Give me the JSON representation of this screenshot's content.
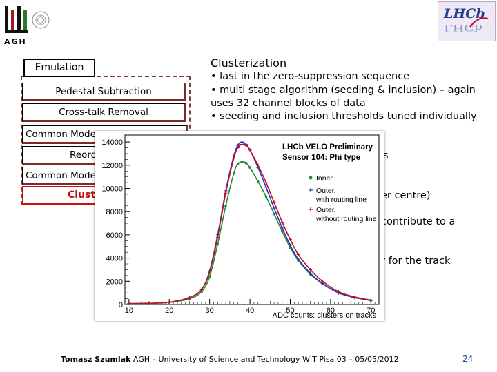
{
  "logos": {
    "agh_text": "AGH",
    "lhcb_text": "LHCb",
    "seal_icon": "university-seal-icon"
  },
  "diagram": {
    "emulation": "Emulation",
    "pedestal": "Pedestal Subtraction",
    "crosstalk": "Cross-talk Removal",
    "common_mode_1": "Common Mode",
    "reorder": "Reord",
    "common_mode_2": "Common Mode",
    "cluster": "Cluste"
  },
  "text": {
    "title": "Clusterization",
    "bullet1": "• last in the zero-suppression sequence",
    "bullet2": "• multi stage algorithm (seeding & inclusion) – again uses 32 channel blocks of data",
    "bullet3": "• seeding and inclusion thresholds tuned individually",
    "frag1": "s",
    "frag2": "er centre)",
    "frag3": "contribute to a",
    "frag4": "r for the track"
  },
  "footer": {
    "author": "Tomasz Szumlak",
    "affiliation": "AGH – University of Science and Technology WIT Pisa 03 – 05/05/2012",
    "page": "24"
  },
  "colors": {
    "inner": "#1e8a2e",
    "outer_routing": "#2233cc",
    "outer_no_routing": "#c01020",
    "cluster_box": "#d01010"
  },
  "chart_data": {
    "type": "line",
    "title": "LHCb VELO Preliminary",
    "subtitle": "Sensor 104: Phi type",
    "xlabel": "ADC counts: clusters on tracks",
    "ylabel": "",
    "xlim": [
      9,
      72
    ],
    "ylim": [
      0,
      14600
    ],
    "xticks": [
      10,
      20,
      30,
      40,
      50,
      60,
      70
    ],
    "yticks": [
      0,
      2000,
      4000,
      6000,
      8000,
      10000,
      12000,
      14000
    ],
    "legend_position": "right",
    "series": [
      {
        "name": "Inner",
        "color_key": "inner",
        "x": [
          10,
          15,
          20,
          25,
          28,
          30,
          32,
          34,
          36,
          37,
          38,
          39,
          40,
          42,
          44,
          46,
          48,
          50,
          52,
          55,
          58,
          62,
          66,
          70
        ],
        "values": [
          80,
          100,
          180,
          500,
          1100,
          2400,
          5200,
          8500,
          11300,
          12100,
          12300,
          12200,
          11800,
          10600,
          9300,
          7800,
          6300,
          4900,
          3800,
          2600,
          1800,
          1000,
          600,
          350
        ]
      },
      {
        "name": "Outer, with routing line",
        "color_key": "outer_routing",
        "x": [
          10,
          15,
          20,
          25,
          28,
          30,
          32,
          34,
          36,
          37,
          38,
          39,
          40,
          42,
          44,
          46,
          48,
          50,
          52,
          55,
          58,
          62,
          66,
          70
        ],
        "values": [
          80,
          100,
          200,
          600,
          1300,
          2900,
          6000,
          9800,
          12800,
          13700,
          14000,
          13800,
          13300,
          11800,
          10100,
          8300,
          6600,
          5100,
          3900,
          2700,
          1800,
          1000,
          600,
          350
        ]
      },
      {
        "name": "Outer, without routing line",
        "color_key": "outer_no_routing",
        "x": [
          10,
          15,
          20,
          25,
          28,
          30,
          32,
          34,
          36,
          37,
          38,
          39,
          40,
          42,
          44,
          46,
          48,
          50,
          52,
          55,
          58,
          62,
          66,
          70
        ],
        "values": [
          80,
          100,
          200,
          600,
          1300,
          2800,
          5800,
          9600,
          12600,
          13500,
          13800,
          13700,
          13300,
          12000,
          10500,
          8800,
          7100,
          5600,
          4300,
          3000,
          2000,
          1100,
          650,
          380
        ]
      }
    ]
  }
}
